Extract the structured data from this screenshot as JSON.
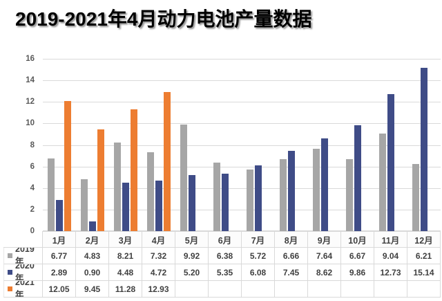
{
  "title": "2019-2021年4月动力电池产量数据",
  "colors": {
    "grid": "#D9D9D9",
    "axis_text": "#595959",
    "table_text": "#404040",
    "series_2019": "#A6A6A6",
    "series_2020": "#3F4C87",
    "series_2021": "#ED7D31"
  },
  "chart_data": {
    "type": "bar",
    "title": "2019-2021年4月动力电池产量数据",
    "xlabel": "",
    "ylabel": "",
    "categories": [
      "1月",
      "2月",
      "3月",
      "4月",
      "5月",
      "6月",
      "7月",
      "8月",
      "9月",
      "10月",
      "11月",
      "12月"
    ],
    "series": [
      {
        "name": "2019年",
        "color": "#A6A6A6",
        "values": [
          6.77,
          4.83,
          8.21,
          7.32,
          9.92,
          6.38,
          5.72,
          6.66,
          7.64,
          6.67,
          9.04,
          6.21
        ]
      },
      {
        "name": "2020年",
        "color": "#3F4C87",
        "values": [
          2.89,
          0.9,
          4.48,
          4.72,
          5.2,
          5.35,
          6.08,
          7.45,
          8.62,
          9.86,
          12.73,
          15.14
        ]
      },
      {
        "name": "2021年",
        "color": "#ED7D31",
        "values": [
          12.05,
          9.45,
          11.28,
          12.93,
          null,
          null,
          null,
          null,
          null,
          null,
          null,
          null
        ]
      }
    ],
    "ylim": [
      0,
      16
    ],
    "ytick_step": 2,
    "grid": true,
    "value_format": "2dp",
    "legend_position": "data-table-left",
    "data_table": true
  }
}
